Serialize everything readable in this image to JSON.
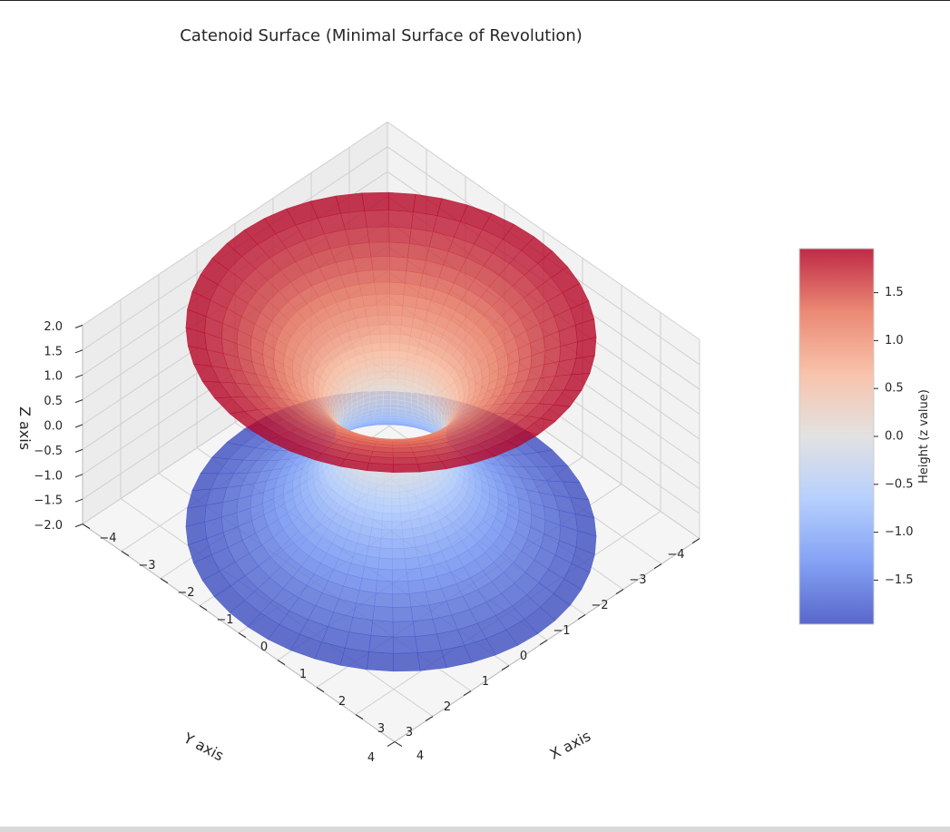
{
  "chart_data": {
    "type": "surface3d",
    "title": "Catenoid Surface (Minimal Surface of Revolution)",
    "surface": "catenoid",
    "equation_params": {
      "c": 1.0
    },
    "u_range": [
      -2.0,
      2.0
    ],
    "xlabel": "X axis",
    "ylabel": "Y axis",
    "zlabel": "Z axis",
    "xlim": [
      -4,
      4
    ],
    "ylim": [
      -4,
      4
    ],
    "zlim": [
      -2.0,
      2.0
    ],
    "x_ticks": [
      "−4",
      "−3",
      "−2",
      "−1",
      "0",
      "1",
      "2",
      "3",
      "4"
    ],
    "y_ticks": [
      "−4",
      "−3",
      "−2",
      "−1",
      "0",
      "1",
      "2",
      "3",
      "4"
    ],
    "z_ticks": [
      "−2.0",
      "−1.5",
      "−1.0",
      "−0.5",
      "0.0",
      "0.5",
      "1.0",
      "1.5",
      "2.0"
    ],
    "colormap": "coolwarm",
    "colormap_stops": [
      "#3b4cc0",
      "#6f92f3",
      "#aac7fd",
      "#dddddd",
      "#f7b89c",
      "#e7745b",
      "#b40426"
    ],
    "colorbar": {
      "label": "Height (z value)",
      "range": [
        -1.96,
        1.96
      ],
      "ticks": [
        "−1.5",
        "−1.0",
        "−0.5",
        "0.0",
        "0.5",
        "1.0",
        "1.5"
      ]
    },
    "grid": true,
    "surface_alpha": 0.8
  }
}
